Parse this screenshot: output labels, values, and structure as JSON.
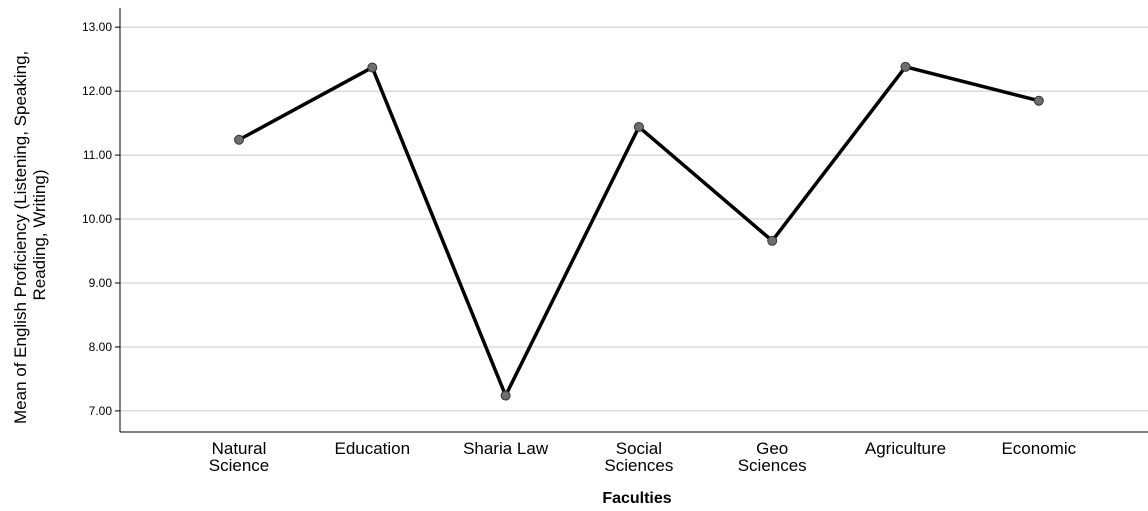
{
  "chart_data": {
    "type": "line",
    "title": "",
    "xlabel": "Faculties",
    "ylabel": "Mean of English Proficiency (Listening, Speaking, Reading, Writing)",
    "ylabel_lines": [
      "Mean of English Proficiency (Listening, Speaking,",
      "Reading, Writing)"
    ],
    "categories": [
      [
        "Natural",
        "Science"
      ],
      [
        "Education"
      ],
      [
        "Sharia Law"
      ],
      [
        "Social",
        "Sciences"
      ],
      [
        "Geo",
        "Sciences"
      ],
      [
        "Agriculture"
      ],
      [
        "Economic"
      ]
    ],
    "values": [
      11.24,
      12.37,
      7.24,
      11.44,
      9.66,
      12.38,
      11.85
    ],
    "y_ticks": [
      "7.00",
      "8.00",
      "9.00",
      "10.00",
      "11.00",
      "12.00",
      "13.00"
    ],
    "ylim": [
      6.67,
      13.3
    ],
    "grid": "horizontal",
    "line_color": "#000000",
    "marker_color": "#6e6e6e",
    "grid_color": "#c8c8c8"
  }
}
